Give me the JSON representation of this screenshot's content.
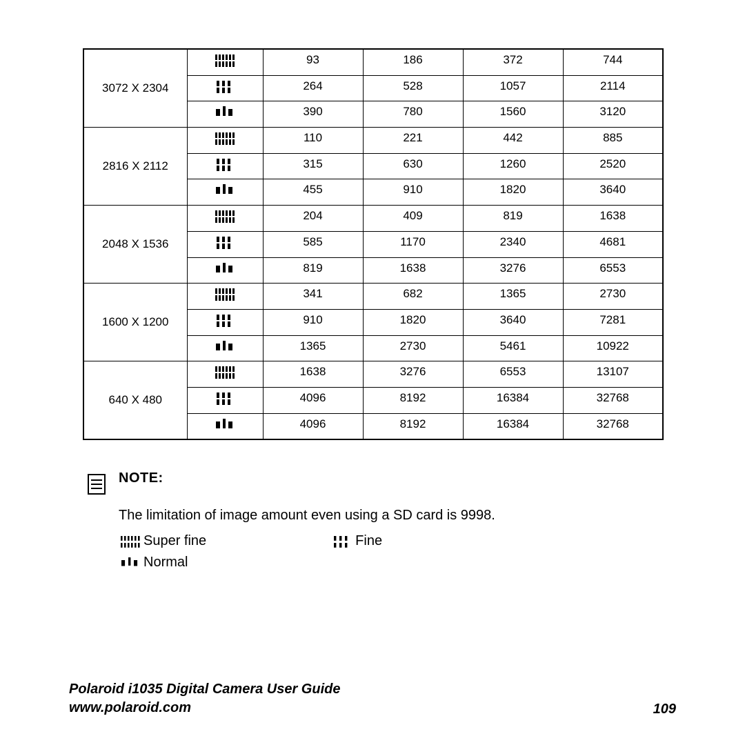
{
  "table": {
    "resolutions": [
      {
        "label": "3072 X 2304",
        "rows": [
          {
            "quality": "super_fine",
            "values": [
              "93",
              "186",
              "372",
              "744"
            ]
          },
          {
            "quality": "fine",
            "values": [
              "264",
              "528",
              "1057",
              "2114"
            ]
          },
          {
            "quality": "normal",
            "values": [
              "390",
              "780",
              "1560",
              "3120"
            ]
          }
        ]
      },
      {
        "label": "2816 X 2112",
        "rows": [
          {
            "quality": "super_fine",
            "values": [
              "110",
              "221",
              "442",
              "885"
            ]
          },
          {
            "quality": "fine",
            "values": [
              "315",
              "630",
              "1260",
              "2520"
            ]
          },
          {
            "quality": "normal",
            "values": [
              "455",
              "910",
              "1820",
              "3640"
            ]
          }
        ]
      },
      {
        "label": "2048 X 1536",
        "rows": [
          {
            "quality": "super_fine",
            "values": [
              "204",
              "409",
              "819",
              "1638"
            ]
          },
          {
            "quality": "fine",
            "values": [
              "585",
              "1170",
              "2340",
              "4681"
            ]
          },
          {
            "quality": "normal",
            "values": [
              "819",
              "1638",
              "3276",
              "6553"
            ]
          }
        ]
      },
      {
        "label": "1600 X 1200",
        "rows": [
          {
            "quality": "super_fine",
            "values": [
              "341",
              "682",
              "1365",
              "2730"
            ]
          },
          {
            "quality": "fine",
            "values": [
              "910",
              "1820",
              "3640",
              "7281"
            ]
          },
          {
            "quality": "normal",
            "values": [
              "1365",
              "2730",
              "5461",
              "10922"
            ]
          }
        ]
      },
      {
        "label": "640 X 480",
        "rows": [
          {
            "quality": "super_fine",
            "values": [
              "1638",
              "3276",
              "6553",
              "13107"
            ]
          },
          {
            "quality": "fine",
            "values": [
              "4096",
              "8192",
              "16384",
              "32768"
            ]
          },
          {
            "quality": "normal",
            "values": [
              "4096",
              "8192",
              "16384",
              "32768"
            ]
          }
        ]
      }
    ],
    "border_color": "#000000",
    "cell_fontsize": 17
  },
  "note": {
    "title": "NOTE:",
    "text": "The limitation of image amount even using a SD card is 9998.",
    "legend": {
      "super_fine": "Super fine",
      "fine": "Fine",
      "normal": "Normal"
    }
  },
  "footer": {
    "title": "Polaroid i1035 Digital Camera User Guide",
    "url": "www.polaroid.com",
    "page": "109"
  },
  "colors": {
    "text": "#000000",
    "background": "#ffffff"
  }
}
